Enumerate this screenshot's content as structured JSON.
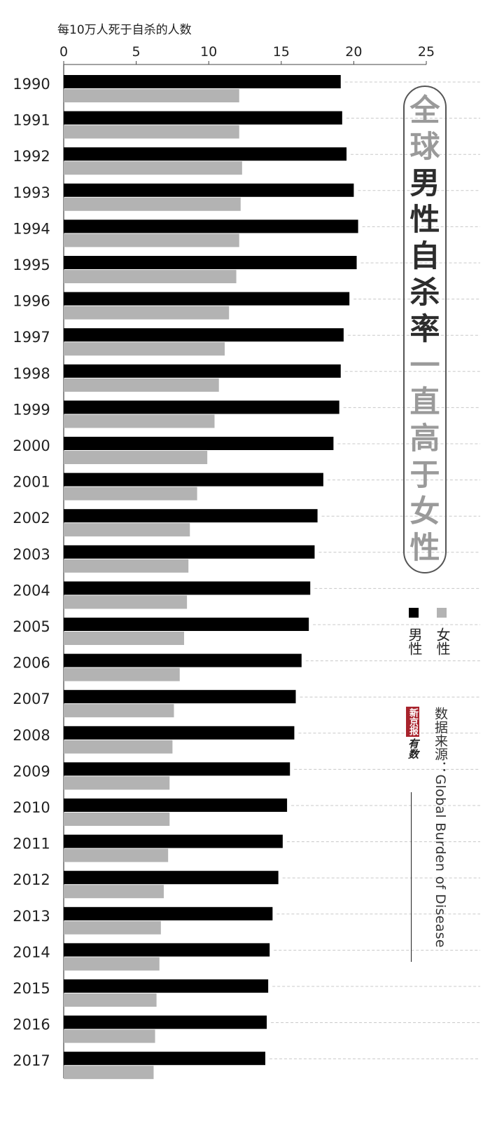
{
  "chart_data": {
    "type": "bar",
    "orientation": "horizontal",
    "ylabel_top": "每10万人死于自杀的人数",
    "xlim": [
      0,
      25
    ],
    "xticks": [
      "0",
      "5",
      "10",
      "15",
      "20",
      "25"
    ],
    "categories": [
      "1990",
      "1991",
      "1992",
      "1993",
      "1994",
      "1995",
      "1996",
      "1997",
      "1998",
      "1999",
      "2000",
      "2001",
      "2002",
      "2003",
      "2004",
      "2005",
      "2006",
      "2007",
      "2008",
      "2009",
      "2010",
      "2011",
      "2012",
      "2013",
      "2014",
      "2015",
      "2016",
      "2017"
    ],
    "series": [
      {
        "name": "男性",
        "color": "#000000",
        "values": [
          19.1,
          19.2,
          19.5,
          20.0,
          20.3,
          20.2,
          19.7,
          19.3,
          19.1,
          19.0,
          18.6,
          17.9,
          17.5,
          17.3,
          17.0,
          16.9,
          16.4,
          16.0,
          15.9,
          15.6,
          15.4,
          15.1,
          14.8,
          14.4,
          14.2,
          14.1,
          14.0,
          13.9
        ]
      },
      {
        "name": "女性",
        "color": "#b3b3b3",
        "values": [
          12.1,
          12.1,
          12.3,
          12.2,
          12.1,
          11.9,
          11.4,
          11.1,
          10.7,
          10.4,
          9.9,
          9.2,
          8.7,
          8.6,
          8.5,
          8.3,
          8.0,
          7.6,
          7.5,
          7.3,
          7.3,
          7.2,
          6.9,
          6.7,
          6.6,
          6.4,
          6.3,
          6.2
        ]
      }
    ],
    "grid": "dashed, right of bars"
  },
  "title": {
    "segments": [
      {
        "text": "全球",
        "color": "#9a9a9a"
      },
      {
        "text": "男性自杀率",
        "color": "#2d2d2d"
      },
      {
        "text": "一直高于",
        "color": "#9a9a9a"
      },
      {
        "text": "女性",
        "color": "#9a9a9a"
      }
    ]
  },
  "legend": {
    "male_label": "男性",
    "female_label": "女性",
    "male_color": "#000000",
    "female_color": "#b3b3b3"
  },
  "source": "数据来源：Global Burden of Disease",
  "logo": {
    "stamp": "新京报",
    "brand": "有数"
  }
}
